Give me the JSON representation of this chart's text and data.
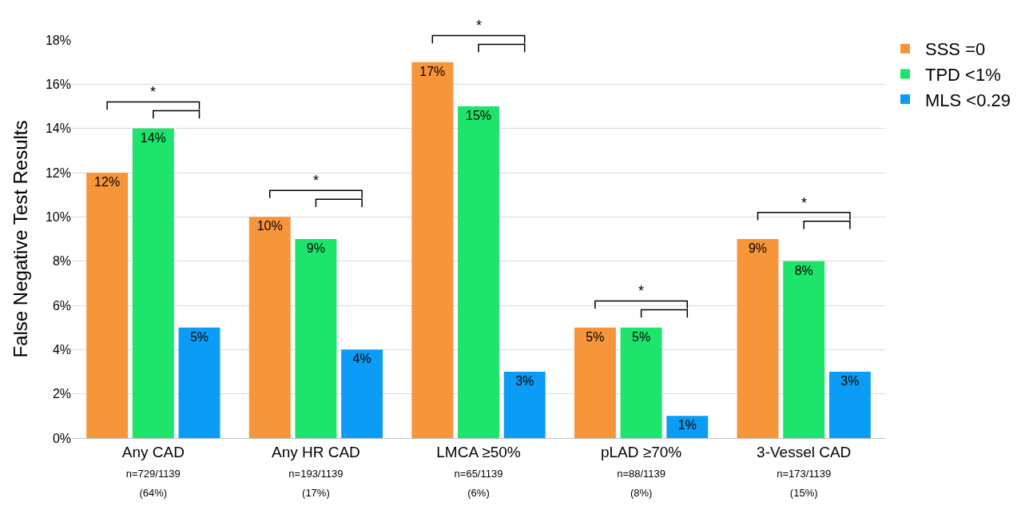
{
  "chart_data": {
    "type": "bar",
    "ylabel": "False Negative Test Results",
    "categories": [
      "Any CAD\nn=729/1139\n(64%)",
      "Any HR CAD\nn=193/1139\n(17%)",
      "LMCA ≥50%\nn=65/1139\n(6%)",
      "pLAD ≥70%\nn=88/1139\n(8%)",
      "3-Vessel CAD\nn=173/1139\n(15%)"
    ],
    "series": [
      {
        "name": "SSS =0",
        "color": "#f7953a",
        "values": [
          12,
          10,
          17,
          5,
          9
        ],
        "value_labels": [
          "12%",
          "10%",
          "17%",
          "5%",
          "9%"
        ]
      },
      {
        "name": "TPD <1%",
        "color": "#1de46b",
        "values": [
          14,
          9,
          15,
          5,
          8
        ],
        "value_labels": [
          "14%",
          "9%",
          "15%",
          "5%",
          "8%"
        ]
      },
      {
        "name": "MLS <0.29",
        "color": "#0b9cf5",
        "values": [
          5,
          4,
          3,
          1,
          3
        ],
        "value_labels": [
          "5%",
          "4%",
          "3%",
          "1%",
          "3%"
        ]
      }
    ],
    "ylim": [
      0,
      18
    ],
    "yticks": [
      {
        "value": 0,
        "label": "0%"
      },
      {
        "value": 2,
        "label": "2%"
      },
      {
        "value": 4,
        "label": "4%"
      },
      {
        "value": 6,
        "label": "6%"
      },
      {
        "value": 8,
        "label": "8%"
      },
      {
        "value": 10,
        "label": "10%"
      },
      {
        "value": 12,
        "label": "12%"
      },
      {
        "value": 14,
        "label": "14%"
      },
      {
        "value": 16,
        "label": "16%"
      },
      {
        "value": 18,
        "label": "18%"
      }
    ],
    "grid": "y",
    "legend": "top right",
    "annotations": [
      "*",
      "*",
      "*",
      "*",
      "*"
    ]
  }
}
